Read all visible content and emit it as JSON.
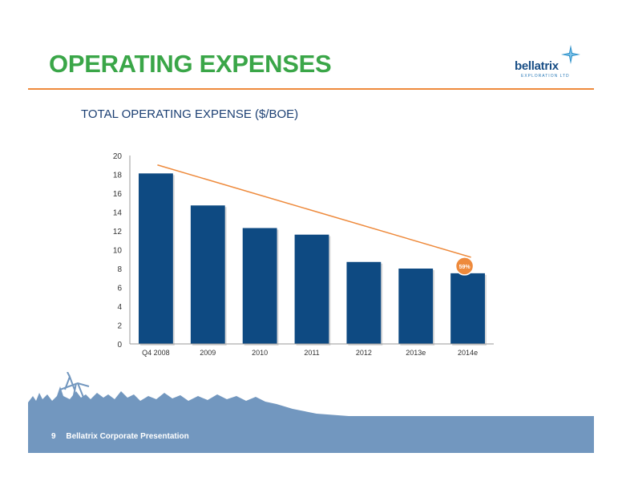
{
  "slide": {
    "title": "OPERATING EXPENSES",
    "chart_heading": "TOTAL OPERATING EXPENSE ($/BOE)"
  },
  "logo": {
    "word": "bellatrix",
    "tagline": "EXPLORATION LTD",
    "icon": "star-icon"
  },
  "footer": {
    "page_number": "9",
    "presentation_title": "Bellatrix Corporate Presentation"
  },
  "colors": {
    "title_green": "#3aa648",
    "accent_orange": "#ee8a3c",
    "bar_blue": "#0e4a82",
    "footer_blue": "#7297bf",
    "heading_navy": "#1b3f73"
  },
  "chart_data": {
    "type": "bar",
    "title": "TOTAL OPERATING EXPENSE ($/BOE)",
    "categories": [
      "Q4 2008",
      "2009",
      "2010",
      "2011",
      "2012",
      "2013e",
      "2014e"
    ],
    "values": [
      18.1,
      14.7,
      12.3,
      11.6,
      8.7,
      8.0,
      7.5
    ],
    "ylim": [
      0,
      20
    ],
    "yticks": [
      0,
      2,
      4,
      6,
      8,
      10,
      12,
      14,
      16,
      18,
      20
    ],
    "grid": false,
    "trend_line": {
      "from": 19.0,
      "to": 9.2
    },
    "callout": {
      "text": "59%",
      "category": "2014e"
    }
  }
}
